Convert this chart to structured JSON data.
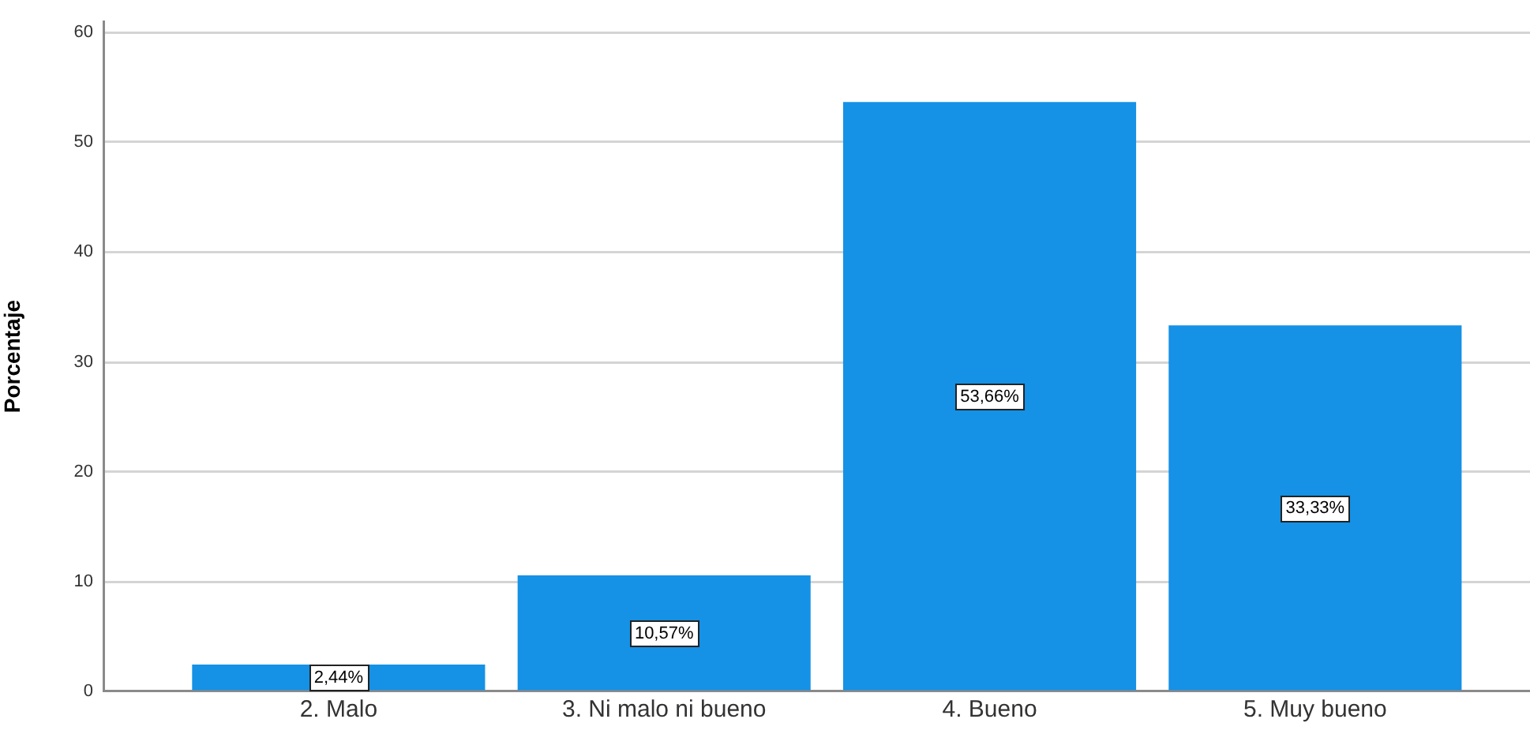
{
  "chart_data": {
    "type": "bar",
    "ylabel": "Porcentaje",
    "categories": [
      "2. Malo",
      "3. Ni malo ni bueno",
      "4. Bueno",
      "5. Muy bueno"
    ],
    "values": [
      2.44,
      10.57,
      53.66,
      33.33
    ],
    "value_labels": [
      "2,44%",
      "10,57%",
      "53,66%",
      "33,33%"
    ],
    "color": "#1591e6",
    "ylim": [
      0,
      61
    ],
    "yticks": [
      0,
      10,
      20,
      30,
      40,
      50,
      60
    ],
    "grid": "y"
  }
}
